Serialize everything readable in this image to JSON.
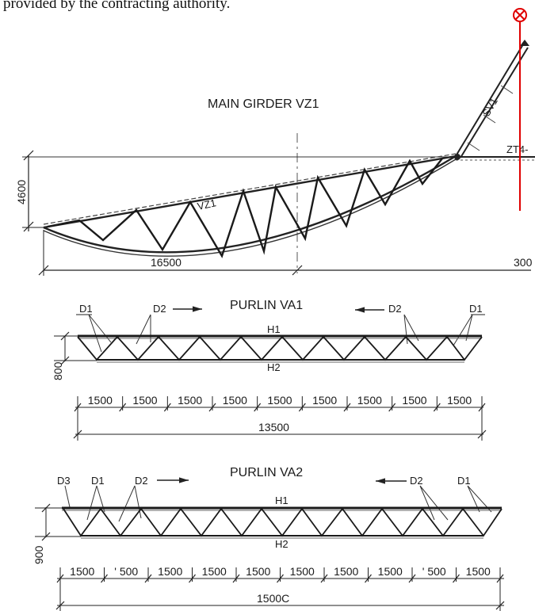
{
  "caption": "provided by the contracting authority.",
  "main_girder": {
    "title": "MAIN GIRDER VZ1",
    "member_label": "VZ1",
    "strut_label": "SV1",
    "tie_label": "ZT4-",
    "height_dim": "4600",
    "span_dim": "16500",
    "right_dim": "300"
  },
  "purlin_va1": {
    "title": "PURLIN VA1",
    "top_chord": "H1",
    "bottom_chord": "H2",
    "diag_labels": [
      "D1",
      "D2",
      "D2",
      "D1"
    ],
    "height_dim": "800",
    "panel_dims": [
      "1500",
      "1500",
      "1500",
      "1500",
      "1500",
      "1500",
      "1500",
      "1500",
      "1500"
    ],
    "total_dim": "13500"
  },
  "purlin_va2": {
    "title": "PURLIN VA2",
    "top_chord": "H1",
    "bottom_chord": "H2",
    "diag_labels": [
      "D3",
      "D1",
      "D2",
      "D2",
      "D1"
    ],
    "height_dim": "900",
    "panel_dims": [
      "1500",
      "' 500",
      "1500",
      "1500",
      "1500",
      "1500",
      "1500",
      "1500",
      "' 500",
      "1500"
    ],
    "total_dim": "1500C"
  },
  "marker": {
    "icon": "circle-x-marker-icon",
    "color": "#e00000"
  }
}
